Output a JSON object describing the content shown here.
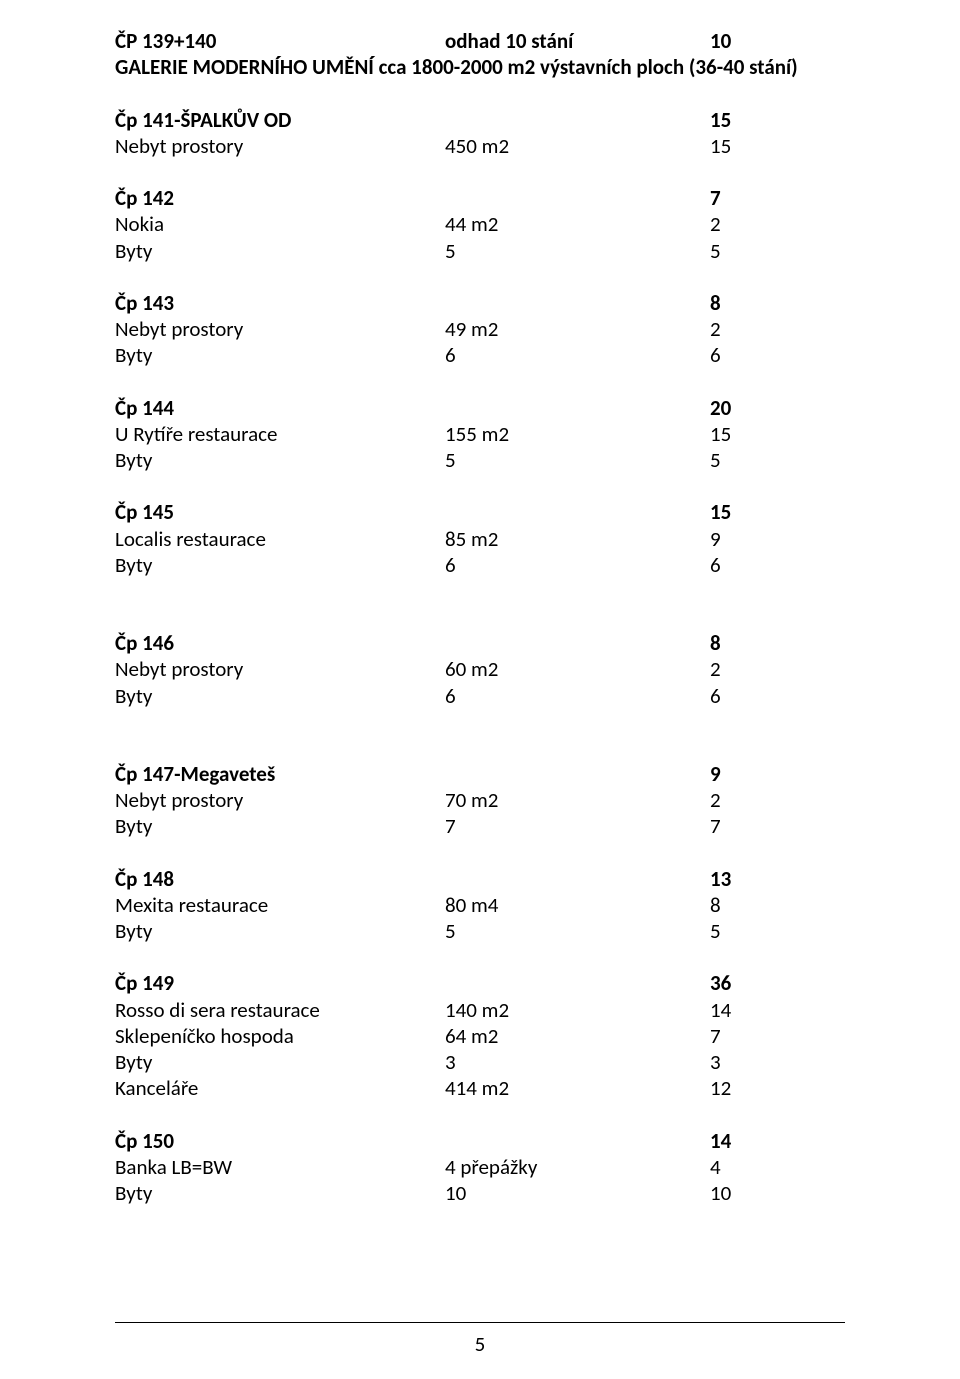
{
  "header": {
    "cp_label": "ČP 139+140",
    "estimate_label": "odhad 10 stání",
    "estimate_value": "10",
    "gallery_line": "GALERIE MODERNÍHO UMĚNÍ cca 1800-2000 m2 výstavních ploch (36-40 stání)"
  },
  "b141": {
    "title": "Čp 141-ŠPALKŮV OD",
    "title_val": "15",
    "r1": {
      "label": "Nebyt prostory",
      "mid": "450 m2",
      "val": "15"
    }
  },
  "b142": {
    "title": "Čp 142",
    "title_val": "7",
    "r1": {
      "label": "Nokia",
      "mid": "44 m2",
      "val": "2"
    },
    "r2": {
      "label": "Byty",
      "mid": "5",
      "val": "5"
    }
  },
  "b143": {
    "title": "Čp 143",
    "title_val": "8",
    "r1": {
      "label": "Nebyt prostory",
      "mid": "49 m2",
      "val": "2"
    },
    "r2": {
      "label": "Byty",
      "mid": "6",
      "val": "6"
    }
  },
  "b144": {
    "title": "Čp 144",
    "title_val": "20",
    "r1": {
      "label": "U Rytíře restaurace",
      "mid": "155 m2",
      "val": "15"
    },
    "r2": {
      "label": "Byty",
      "mid": "5",
      "val": "5"
    }
  },
  "b145": {
    "title": "Čp 145",
    "title_val": "15",
    "r1": {
      "label": "Localis restaurace",
      "mid": "85 m2",
      "val": "9"
    },
    "r2": {
      "label": "Byty",
      "mid": "6",
      "val": "6"
    }
  },
  "b146": {
    "title": "Čp 146",
    "title_val": "8",
    "r1": {
      "label": "Nebyt prostory",
      "mid": "60 m2",
      "val": "2"
    },
    "r2": {
      "label": "Byty",
      "mid": "6",
      "val": "6"
    }
  },
  "b147": {
    "title": "Čp 147-Megaveteš",
    "title_val": "9",
    "r1": {
      "label": "Nebyt prostory",
      "mid": "70 m2",
      "val": "2"
    },
    "r2": {
      "label": "Byty",
      "mid": "7",
      "val": "7"
    }
  },
  "b148": {
    "title": "Čp 148",
    "title_val": "13",
    "r1": {
      "label": "Mexita restaurace",
      "mid": "80 m4",
      "val": "8"
    },
    "r2": {
      "label": "Byty",
      "mid": "5",
      "val": "5"
    }
  },
  "b149": {
    "title": "Čp 149",
    "title_val": "36",
    "r1": {
      "label": "Rosso di sera restaurace",
      "mid": "140 m2",
      "val": "14"
    },
    "r2": {
      "label": "Sklepeníčko hospoda",
      "mid": "64 m2",
      "val": "7"
    },
    "r3": {
      "label": "Byty",
      "mid": "3",
      "val": "3"
    },
    "r4": {
      "label": "Kanceláře",
      "mid": "414 m2",
      "val": "12"
    }
  },
  "b150": {
    "title": "Čp 150",
    "title_val": "14",
    "r1": {
      "label": "Banka LB=BW",
      "mid": "4 přepážky",
      "val": "4"
    },
    "r2": {
      "label": "Byty",
      "mid": "10",
      "val": "10"
    }
  },
  "page_number": "5"
}
